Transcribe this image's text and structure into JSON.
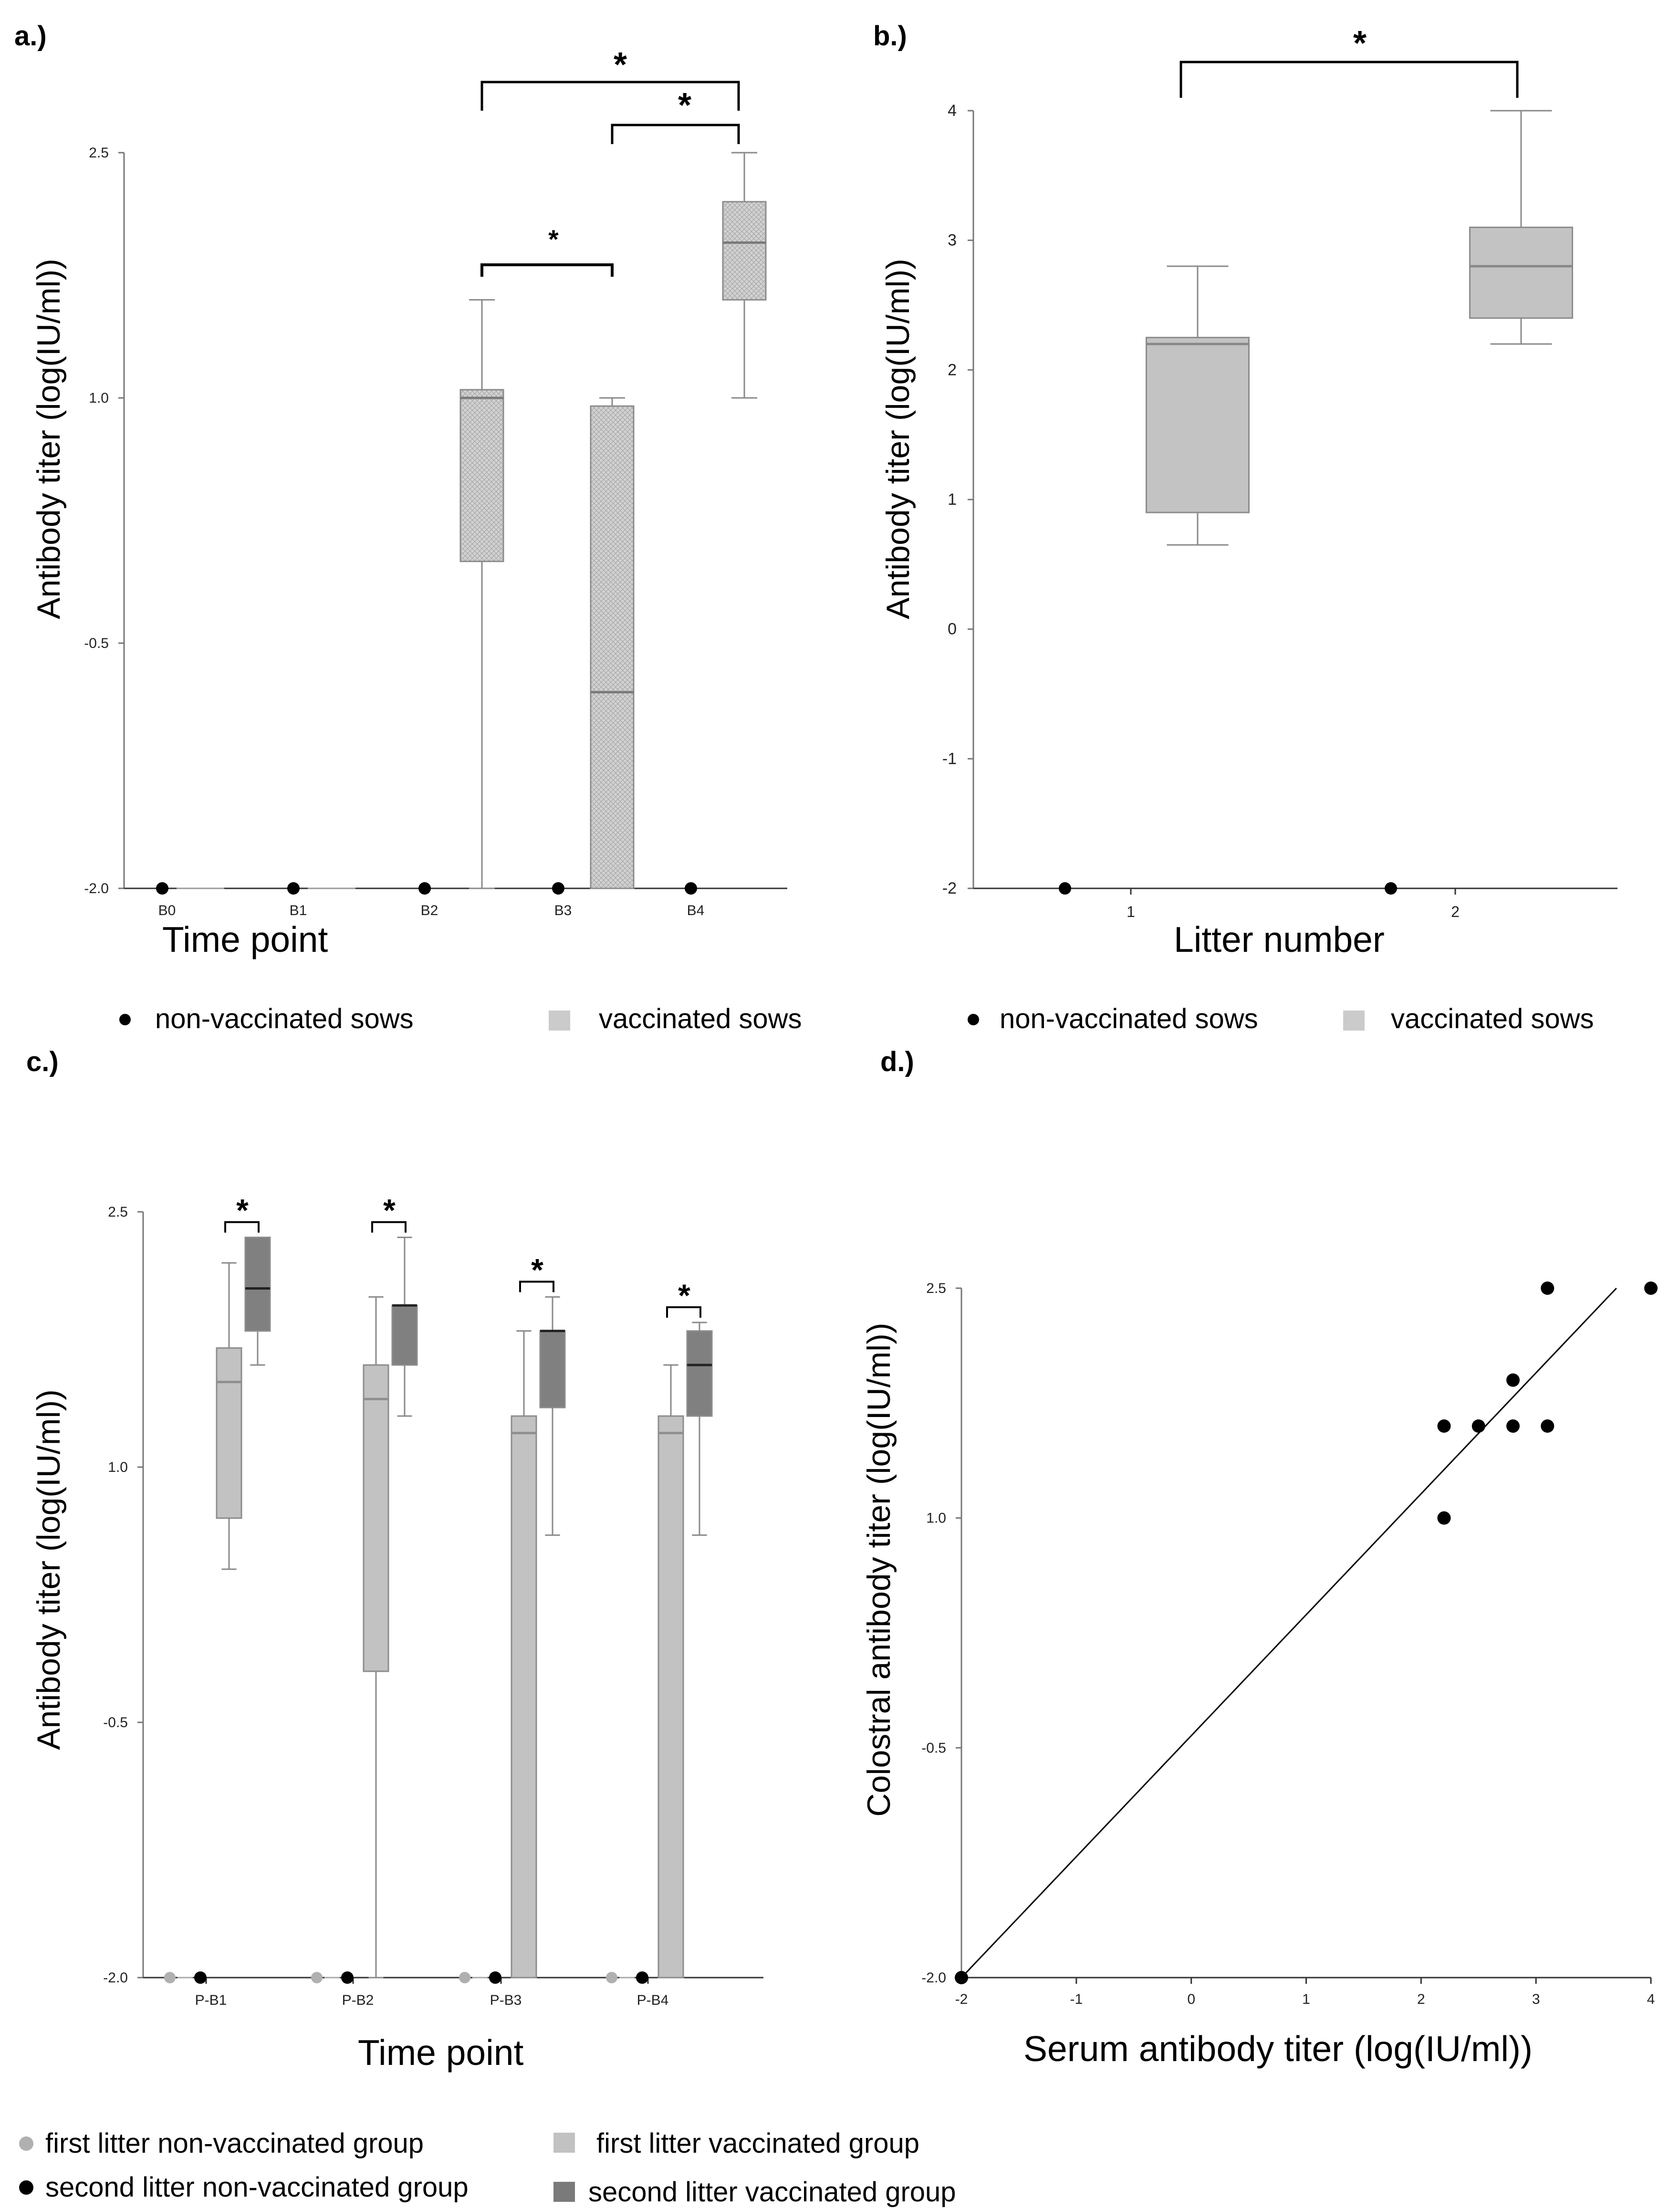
{
  "chart_data": [
    {
      "panel": "a.)",
      "type": "box",
      "xlabel": "Time point",
      "ylabel": "Antibody titer (log(IU/ml))",
      "ylim": [
        -2.0,
        2.5
      ],
      "yticks": [
        "-2.0",
        "-0.5",
        "1.0",
        "2.5"
      ],
      "categories": [
        "B0",
        "B1",
        "B2",
        "B3",
        "B4"
      ],
      "non_vaccinated": [
        -2.0,
        -2.0,
        -2.0,
        -2.0,
        -2.0
      ],
      "boxes": [
        {
          "category": "B2",
          "min": -2.0,
          "q1": 0.0,
          "median": 1.0,
          "q3": 1.05,
          "max": 1.6
        },
        {
          "category": "B3",
          "min": -2.0,
          "q1": -2.0,
          "median": -0.8,
          "q3": 0.95,
          "max": 1.0
        },
        {
          "category": "B4",
          "min": 1.0,
          "q1": 1.6,
          "median": 1.95,
          "q3": 2.2,
          "max": 2.5
        }
      ],
      "significance": [
        {
          "from": "B2",
          "to": "B3",
          "label": "*"
        },
        {
          "from": "B3",
          "to": "B4",
          "label": "*"
        },
        {
          "from": "B2",
          "to": "B4",
          "label": "*"
        }
      ],
      "legend": [
        "non-vaccinated sows",
        "vaccinated sows"
      ]
    },
    {
      "panel": "b.)",
      "type": "box",
      "xlabel": "Litter number",
      "ylabel": "Antibody titer (log(IU/ml))",
      "ylim": [
        -2,
        4
      ],
      "yticks": [
        "-2",
        "-1",
        "0",
        "1",
        "2",
        "3",
        "4"
      ],
      "categories": [
        "1",
        "2"
      ],
      "non_vaccinated": [
        -2,
        -2
      ],
      "boxes": [
        {
          "category": "1",
          "min": 0.65,
          "q1": 0.9,
          "median": 2.2,
          "q3": 2.25,
          "max": 2.8
        },
        {
          "category": "2",
          "min": 2.2,
          "q1": 2.4,
          "median": 2.8,
          "q3": 3.1,
          "max": 4.0
        }
      ],
      "significance": [
        {
          "from": "1",
          "to": "2",
          "label": "*"
        }
      ],
      "legend": [
        "non-vaccinated sows",
        "vaccinated sows"
      ]
    },
    {
      "panel": "c.)",
      "type": "box",
      "xlabel": "Time point",
      "ylabel": "Antibody titer (log(IU/ml))",
      "ylim": [
        -2.0,
        2.5
      ],
      "yticks": [
        "-2.0",
        "-0.5",
        "1.0",
        "2.5"
      ],
      "categories": [
        "P-B1",
        "P-B2",
        "P-B3",
        "P-B4"
      ],
      "series": [
        {
          "name": "first litter non-vaccinated group",
          "values": [
            -2.0,
            -2.0,
            -2.0,
            -2.0
          ]
        },
        {
          "name": "second litter non-vaccinated group",
          "values": [
            -2.0,
            -2.0,
            -2.0,
            -2.0
          ]
        },
        {
          "name": "first litter vaccinated group",
          "boxes": [
            {
              "min": 0.4,
              "q1": 0.7,
              "median": 1.5,
              "q3": 1.7,
              "max": 2.2
            },
            {
              "min": -2.0,
              "q1": -0.2,
              "median": 1.4,
              "q3": 1.6,
              "max": 2.0
            },
            {
              "min": -2.0,
              "q1": -2.0,
              "median": 1.2,
              "q3": 1.3,
              "max": 1.8
            },
            {
              "min": -2.0,
              "q1": -2.0,
              "median": 1.2,
              "q3": 1.3,
              "max": 1.6
            }
          ]
        },
        {
          "name": "second litter vaccinated group",
          "boxes": [
            {
              "min": 1.6,
              "q1": 1.8,
              "median": 2.05,
              "q3": 2.35,
              "max": 2.35
            },
            {
              "min": 1.3,
              "q1": 1.6,
              "median": 1.95,
              "q3": 1.95,
              "max": 2.35
            },
            {
              "min": 0.6,
              "q1": 1.35,
              "median": 1.8,
              "q3": 1.8,
              "max": 2.0
            },
            {
              "min": 0.6,
              "q1": 1.3,
              "median": 1.6,
              "q3": 1.8,
              "max": 1.85
            }
          ]
        }
      ],
      "significance_label": "*"
    },
    {
      "panel": "d.)",
      "type": "scatter",
      "xlabel": "Serum antibody titer (log(IU/ml))",
      "ylabel": "Colostral antibody titer (log(IU/ml))",
      "xlim": [
        -2,
        4
      ],
      "ylim": [
        -2.0,
        2.5
      ],
      "xticks": [
        "-2",
        "-1",
        "0",
        "1",
        "2",
        "3",
        "4"
      ],
      "yticks": [
        "-2.0",
        "-0.5",
        "1.0",
        "2.5"
      ],
      "points": [
        {
          "x": -2,
          "y": -2.0
        },
        {
          "x": 2.2,
          "y": 1.0
        },
        {
          "x": 2.2,
          "y": 1.6
        },
        {
          "x": 2.5,
          "y": 1.6
        },
        {
          "x": 2.8,
          "y": 1.6
        },
        {
          "x": 2.8,
          "y": 1.9
        },
        {
          "x": 3.1,
          "y": 1.6
        },
        {
          "x": 3.1,
          "y": 2.5
        },
        {
          "x": 4.0,
          "y": 2.5
        }
      ],
      "fit_line": {
        "x": [
          -2,
          3.7
        ],
        "y": [
          -2.0,
          2.5
        ]
      }
    }
  ],
  "legend_c": {
    "first_nonvacc": "first  litter non-vaccinated group",
    "first_vacc": "first litter vaccinated group",
    "second_nonvacc": "second litter non-vaccinated group",
    "second_vacc": "second litter vaccinated group"
  },
  "colors": {
    "box_a": "#cdcdcd",
    "box_b": "#c3c3c3",
    "box_first": "#c2c2c2",
    "box_second": "#808080",
    "dot_first": "#b0b0b0",
    "dot": "#000000"
  }
}
